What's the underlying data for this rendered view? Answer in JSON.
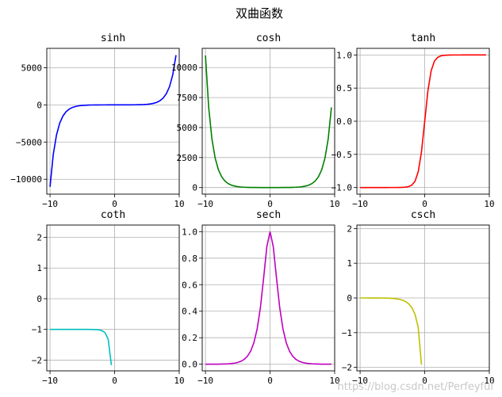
{
  "figure_title": "双曲函数",
  "watermark": "https://blog.csdn.net/Perfeyful",
  "chart_data": [
    {
      "type": "line",
      "title": "sinh",
      "color": "#0000ff",
      "func": "sinh",
      "x_range": [
        -10,
        9.5
      ],
      "xlim": [
        -10.5,
        10.0
      ],
      "ylim": [
        -12000,
        7600
      ],
      "xticks": [
        -10,
        0,
        10
      ],
      "yticks": [
        -10000,
        -5000,
        0,
        5000
      ],
      "grid": true,
      "legend": "none"
    },
    {
      "type": "line",
      "title": "cosh",
      "color": "#008000",
      "func": "cosh",
      "x_range": [
        -10,
        9.5
      ],
      "xlim": [
        -10.5,
        10.0
      ],
      "ylim": [
        -550,
        11600
      ],
      "xticks": [
        -10,
        0,
        10
      ],
      "yticks": [
        0,
        2500,
        5000,
        7500,
        10000
      ],
      "grid": true,
      "legend": "none"
    },
    {
      "type": "line",
      "title": "tanh",
      "color": "#ff0000",
      "func": "tanh",
      "x_range": [
        -10,
        9.5
      ],
      "xlim": [
        -10.5,
        10.0
      ],
      "ylim": [
        -1.1,
        1.1
      ],
      "xticks": [
        -10,
        0,
        10
      ],
      "yticks": [
        -1.0,
        -0.5,
        0.0,
        0.5,
        1.0
      ],
      "grid": true,
      "legend": "none"
    },
    {
      "type": "line",
      "title": "coth",
      "color": "#00bfbf",
      "func": "coth",
      "x_range": [
        -10,
        9.5
      ],
      "xlim": [
        -10.5,
        10.0
      ],
      "ylim": [
        -2.35,
        2.4
      ],
      "xticks": [
        -10,
        0,
        10
      ],
      "yticks": [
        -2,
        -1,
        0,
        1,
        2
      ],
      "grid": true,
      "legend": "none"
    },
    {
      "type": "line",
      "title": "sech",
      "color": "#bf00bf",
      "func": "sech",
      "x_range": [
        -10,
        9.5
      ],
      "xlim": [
        -10.5,
        10.0
      ],
      "ylim": [
        -0.05,
        1.05
      ],
      "xticks": [
        -10,
        0,
        10
      ],
      "yticks": [
        0.0,
        0.2,
        0.4,
        0.6,
        0.8,
        1.0
      ],
      "grid": true,
      "legend": "none"
    },
    {
      "type": "line",
      "title": "csch",
      "color": "#bfbf00",
      "func": "csch",
      "x_range": [
        -10,
        9.5
      ],
      "xlim": [
        -10.5,
        10.0
      ],
      "ylim": [
        -2.1,
        2.1
      ],
      "xticks": [
        -10,
        0,
        10
      ],
      "yticks": [
        -2,
        -1,
        0,
        1,
        2
      ],
      "grid": true,
      "legend": "none"
    }
  ]
}
